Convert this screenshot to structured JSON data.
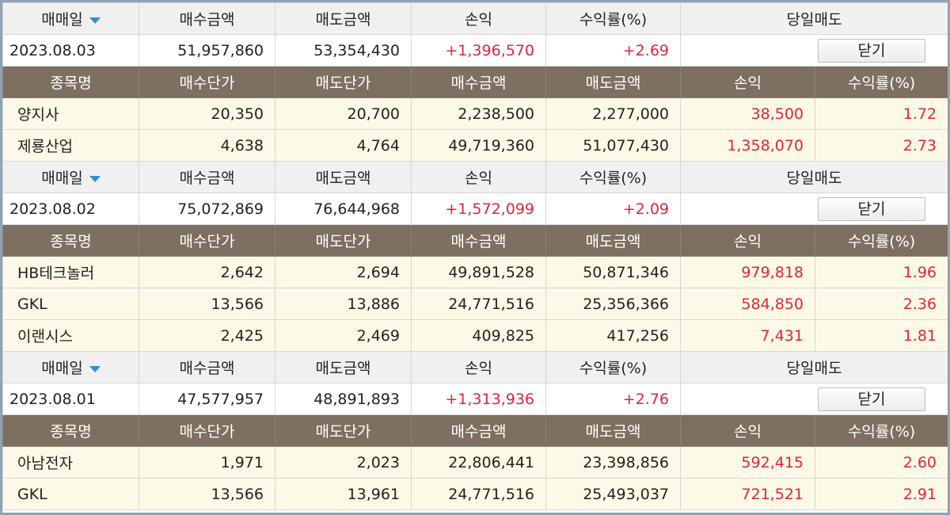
{
  "header_labels": {
    "trade_date": "매매일",
    "buy_amount": "매수금액",
    "sell_amount": "매도금액",
    "profit": "손익",
    "return_rate": "수익률(%)",
    "same_day_sell": "당일매도"
  },
  "column_labels": {
    "name": "종목명",
    "buy_price": "매수단가",
    "sell_price": "매도단가",
    "buy_amount": "매수금액",
    "sell_amount": "매도금액",
    "profit": "손익",
    "return_rate": "수익률(%)"
  },
  "close_label": "닫기",
  "groups": [
    {
      "summary": {
        "date": "2023.08.03",
        "buy_amount": "51,957,860",
        "sell_amount": "53,354,430",
        "profit": "+1,396,570",
        "return_rate": "+2.69"
      },
      "rows": [
        {
          "name": "양지사",
          "buy_price": "20,350",
          "sell_price": "20,700",
          "buy_amount": "2,238,500",
          "sell_amount": "2,277,000",
          "profit": "38,500",
          "return_rate": "1.72"
        },
        {
          "name": "제룡산업",
          "buy_price": "4,638",
          "sell_price": "4,764",
          "buy_amount": "49,719,360",
          "sell_amount": "51,077,430",
          "profit": "1,358,070",
          "return_rate": "2.73"
        }
      ]
    },
    {
      "summary": {
        "date": "2023.08.02",
        "buy_amount": "75,072,869",
        "sell_amount": "76,644,968",
        "profit": "+1,572,099",
        "return_rate": "+2.09"
      },
      "rows": [
        {
          "name": "HB테크놀러",
          "buy_price": "2,642",
          "sell_price": "2,694",
          "buy_amount": "49,891,528",
          "sell_amount": "50,871,346",
          "profit": "979,818",
          "return_rate": "1.96"
        },
        {
          "name": "GKL",
          "buy_price": "13,566",
          "sell_price": "13,886",
          "buy_amount": "24,771,516",
          "sell_amount": "25,356,366",
          "profit": "584,850",
          "return_rate": "2.36"
        },
        {
          "name": "이랜시스",
          "buy_price": "2,425",
          "sell_price": "2,469",
          "buy_amount": "409,825",
          "sell_amount": "417,256",
          "profit": "7,431",
          "return_rate": "1.81"
        }
      ]
    },
    {
      "summary": {
        "date": "2023.08.01",
        "buy_amount": "47,577,957",
        "sell_amount": "48,891,893",
        "profit": "+1,313,936",
        "return_rate": "+2.76"
      },
      "rows": [
        {
          "name": "아남전자",
          "buy_price": "1,971",
          "sell_price": "2,023",
          "buy_amount": "22,806,441",
          "sell_amount": "23,398,856",
          "profit": "592,415",
          "return_rate": "2.60"
        },
        {
          "name": "GKL",
          "buy_price": "13,566",
          "sell_price": "13,961",
          "buy_amount": "24,771,516",
          "sell_amount": "25,493,037",
          "profit": "721,521",
          "return_rate": "2.91"
        }
      ]
    }
  ],
  "colors": {
    "header_bg": "#f0f0f0",
    "column_header_bg": "#7e7061",
    "row_bg": "#fdf9e7",
    "profit_red": "#e2243b",
    "sort_arrow_blue": "#2e8fd1",
    "frame_border": "#8fa3b5"
  }
}
